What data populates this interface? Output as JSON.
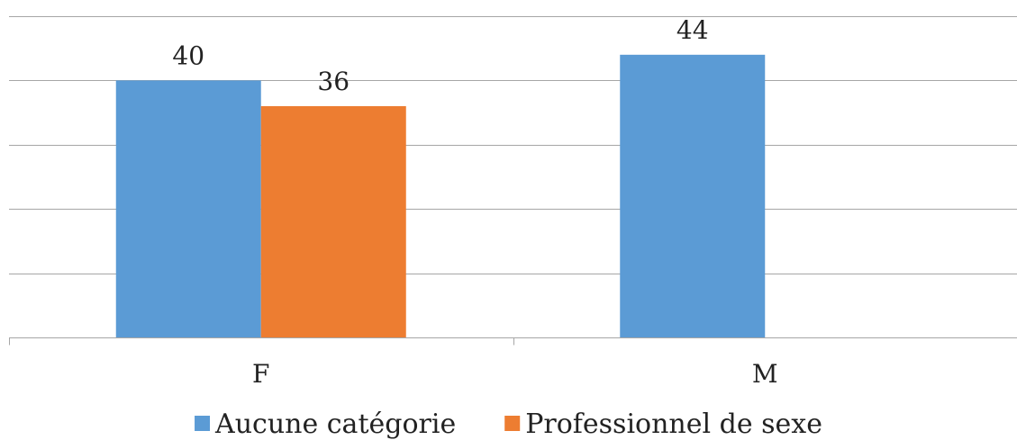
{
  "chart_data": {
    "type": "bar",
    "categories": [
      "F",
      "M"
    ],
    "series": [
      {
        "name": "Aucune catégorie",
        "values": [
          40,
          44
        ],
        "color": "#5b9bd5"
      },
      {
        "name": "Professionnel de sexe",
        "values": [
          36,
          null
        ],
        "color": "#ed7d31"
      }
    ],
    "data_labels": [
      [
        "40",
        "44"
      ],
      [
        "36",
        ""
      ]
    ],
    "title": "",
    "xlabel": "",
    "ylabel": "",
    "ylim": [
      0,
      50
    ],
    "grid": true,
    "gridline_step": 10,
    "legend_position": "bottom"
  }
}
